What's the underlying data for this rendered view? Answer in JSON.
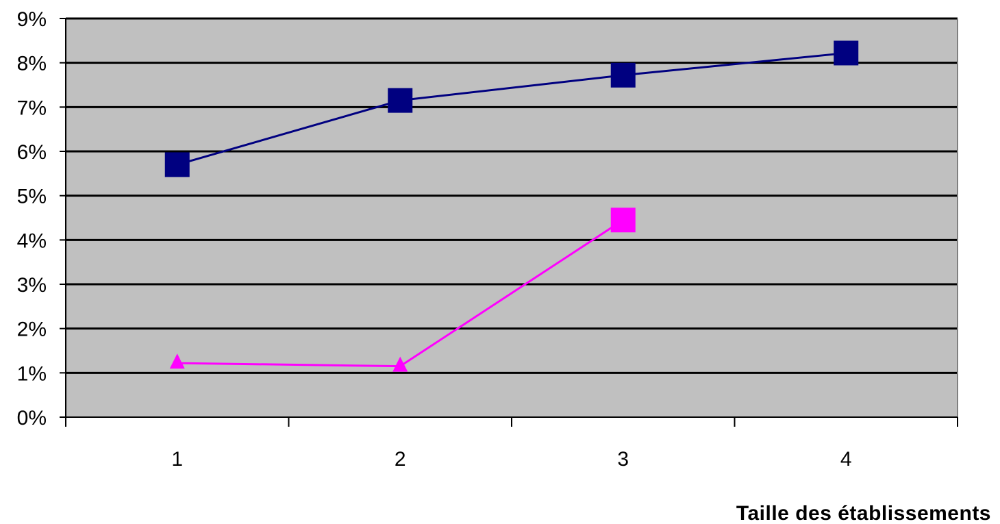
{
  "chart_data": {
    "type": "line",
    "title": "",
    "xlabel": "Taille des établissements",
    "ylabel": "",
    "categories": [
      "1",
      "2",
      "3",
      "4"
    ],
    "ylim": [
      0,
      9
    ],
    "y_ticks": [
      "0%",
      "1%",
      "2%",
      "3%",
      "4%",
      "5%",
      "6%",
      "7%",
      "8%",
      "9%"
    ],
    "y_tick_values": [
      0,
      1,
      2,
      3,
      4,
      5,
      6,
      7,
      8,
      9
    ],
    "grid": true,
    "legend": "none",
    "plot_background": "#C0C0C0",
    "series": [
      {
        "values": [
          5.7,
          7.15,
          7.72,
          8.22
        ],
        "color": "#000080",
        "markers": [
          "square",
          "square",
          "square",
          "square"
        ]
      },
      {
        "values": [
          1.22,
          1.15,
          4.45,
          null
        ],
        "color": "#FF00FF",
        "markers": [
          "triangle",
          "triangle",
          "square",
          null
        ]
      }
    ]
  }
}
